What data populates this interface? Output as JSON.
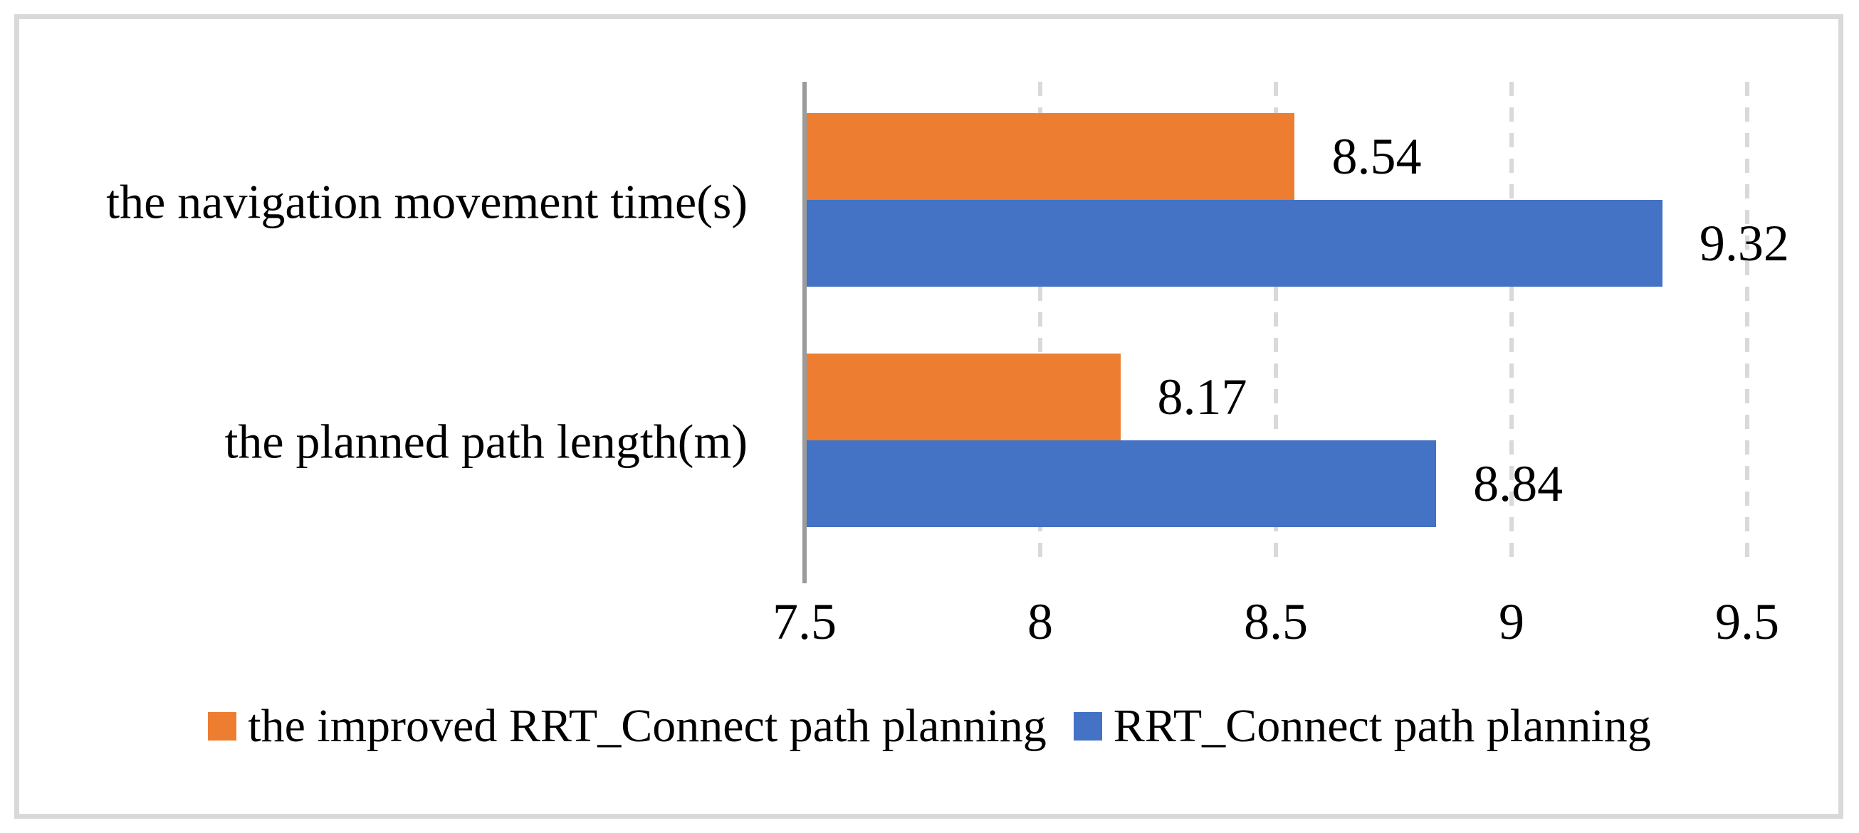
{
  "chart_data": {
    "type": "bar",
    "orientation": "horizontal",
    "title": "",
    "categories": [
      "the navigation movement time(s)",
      "the planned path length(m)"
    ],
    "series": [
      {
        "name": "the improved RRT_Connect path planning",
        "color": "#ED7D31",
        "values": [
          8.54,
          8.17
        ],
        "labels": [
          "8.54",
          "8.17"
        ]
      },
      {
        "name": "RRT_Connect path planning",
        "color": "#4472C4",
        "values": [
          9.32,
          8.84
        ],
        "labels": [
          "9.32",
          "8.84"
        ]
      }
    ],
    "x_axis": {
      "min": 7.5,
      "max": 9.5,
      "tick_step": 0.5,
      "ticks": [
        "7.5",
        "8",
        "8.5",
        "9",
        "9.5"
      ],
      "grid": "dashed-vertical"
    },
    "legend_position": "bottom",
    "data_labels": "outside-end",
    "colors": {
      "grid": "#D9D9D9",
      "axis_line": "#9B9B9B",
      "frame_border": "#D9D9D9",
      "text": "#000000"
    }
  }
}
